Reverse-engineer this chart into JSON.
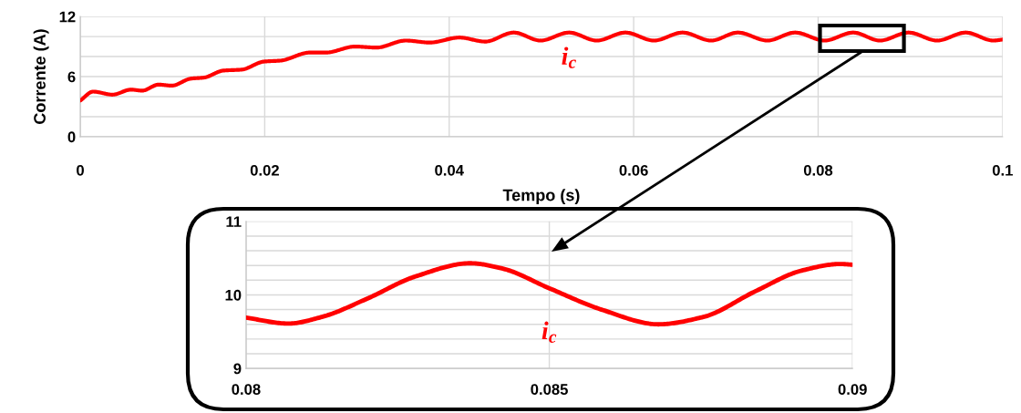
{
  "chart_data": [
    {
      "type": "line",
      "xlabel": "Tempo (s)",
      "ylabel": "Corrente (A)",
      "xlim": [
        0,
        0.1
      ],
      "ylim": [
        0,
        12
      ],
      "xticks": [
        0,
        0.02,
        0.04,
        0.06,
        0.08,
        0.1
      ],
      "yticks": [
        0,
        {
          "value": 2,
          "label": null
        },
        {
          "value": 4,
          "label": null
        },
        6,
        {
          "value": 8,
          "label": null
        },
        {
          "value": 10,
          "label": null
        },
        12
      ],
      "grid": true,
      "line_style": "solid",
      "marker": "none",
      "annotations": [
        "i$_{c}$"
      ],
      "series": [
        {
          "color": "#ff0000",
          "x": [
            0,
            0.0014,
            0.0035,
            0.0055,
            0.0067,
            0.0085,
            0.0099,
            0.012,
            0.0134,
            0.0155,
            0.0175,
            0.0199,
            0.0217,
            0.0249,
            0.0266,
            0.0298,
            0.0321,
            0.0353,
            0.0379,
            0.0411,
            0.0439,
            0.047,
            0.0499,
            0.053,
            0.056,
            0.0591,
            0.0622,
            0.0653,
            0.0684,
            0.0713,
            0.0745,
            0.0775,
            0.0807,
            0.0838,
            0.0867,
            0.0898,
            0.0929,
            0.096,
            0.099,
            0.1
          ],
          "values": [
            3.6,
            4.5,
            4.2,
            4.7,
            4.6,
            5.2,
            5.1,
            5.8,
            5.9,
            6.6,
            6.7,
            7.5,
            7.6,
            8.4,
            8.4,
            9.0,
            8.9,
            9.6,
            9.4,
            9.9,
            9.5,
            10.4,
            9.6,
            10.4,
            9.6,
            10.4,
            9.6,
            10.4,
            9.6,
            10.4,
            9.6,
            10.4,
            9.6,
            10.4,
            9.6,
            10.4,
            9.6,
            10.4,
            9.6,
            9.7
          ]
        }
      ]
    },
    {
      "type": "line",
      "xlim": [
        0.08,
        0.09
      ],
      "ylim": [
        9,
        11
      ],
      "xticks": [
        0.08,
        0.085,
        0.09
      ],
      "yticks": [
        9,
        {
          "value": 9.2,
          "label": null
        },
        {
          "value": 9.4,
          "label": null
        },
        {
          "value": 9.6,
          "label": null
        },
        {
          "value": 9.8,
          "label": null
        },
        10,
        {
          "value": 10.2,
          "label": null
        },
        {
          "value": 10.4,
          "label": null
        },
        {
          "value": 10.6,
          "label": null
        },
        {
          "value": 10.8,
          "label": null
        },
        11
      ],
      "grid": true,
      "line_style": "solid",
      "marker": "none",
      "annotations": [
        "i$_{c}$"
      ],
      "series": [
        {
          "color": "#ff0000",
          "x": [
            0.08,
            0.0807,
            0.08125,
            0.082,
            0.08279,
            0.0837,
            0.08422,
            0.085,
            0.08586,
            0.0868,
            0.08754,
            0.0884,
            0.08916,
            0.0898,
            0.09
          ],
          "values": [
            9.69,
            9.61,
            9.7,
            9.95,
            10.25,
            10.43,
            10.36,
            10.09,
            9.8,
            9.6,
            9.7,
            10.05,
            10.33,
            10.42,
            10.41
          ]
        }
      ]
    }
  ]
}
